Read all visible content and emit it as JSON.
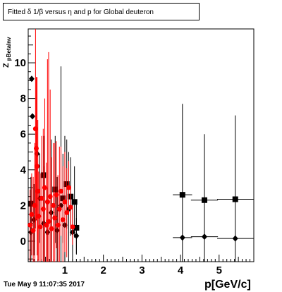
{
  "title": "Fitted δ 1/β versus η and p for Global deuteron",
  "ylabel_main": "Z",
  "ylabel_sub": "pBetaInv",
  "xlabel": "p[GeV/c]",
  "timestamp": "Tue May  9 11:07:35 2017",
  "chart_data": {
    "type": "scatter",
    "title": "Fitted δ 1/β versus η and p for Global deuteron",
    "xlabel": "p[GeV/c]",
    "ylabel": "Z pBetaInv",
    "xlim": [
      0.05,
      5.9
    ],
    "ylim": [
      -1.15,
      11.9
    ],
    "xticks": [
      1,
      2,
      3,
      4,
      5
    ],
    "yticks": [
      0,
      2,
      4,
      6,
      8,
      10
    ],
    "grid": false,
    "colors": {
      "red": "#ff0000",
      "black": "#000000"
    },
    "series": [
      {
        "marker": "square",
        "color": "#000000",
        "points": [
          {
            "x": 0.12,
            "y": 2.1,
            "ey": 1.5,
            "ex": 0.05
          },
          {
            "x": 0.45,
            "y": 3.7,
            "ey": 2.2,
            "ex": 0.05
          },
          {
            "x": 0.75,
            "y": 2.9,
            "ey": 3.0,
            "ex": 0.05
          },
          {
            "x": 0.95,
            "y": 2.4,
            "ey": 2.5,
            "ex": 0.05
          },
          {
            "x": 1.05,
            "y": 3.2,
            "ey": 2.5,
            "ex": 0.05
          },
          {
            "x": 1.15,
            "y": 2.5,
            "ey": 2.2,
            "ex": 0.05
          },
          {
            "x": 1.25,
            "y": 2.2,
            "ey": 2.0,
            "ex": 0.05
          },
          {
            "x": 1.3,
            "y": 0.75,
            "ey": 1.5,
            "ex": 0.05
          },
          {
            "x": 4.05,
            "y": 2.6,
            "ey": 5.1,
            "ex": 0.25
          },
          {
            "x": 4.62,
            "y": 2.3,
            "ey": 3.7,
            "ex": 0.35
          },
          {
            "x": 5.42,
            "y": 2.35,
            "ey": 4.7,
            "ex": 0.47
          }
        ]
      },
      {
        "marker": "diamond",
        "color": "#000000",
        "points": [
          {
            "x": 0.12,
            "y": 0.5,
            "ey": 1.8,
            "ex": 0.05
          },
          {
            "x": 0.14,
            "y": 9.1,
            "ey": 0.0,
            "ex": 0.0
          },
          {
            "x": 0.16,
            "y": 7.0,
            "ey": 0.0,
            "ex": 0.0
          },
          {
            "x": 0.2,
            "y": 1.2,
            "ey": 2.0,
            "ex": 0.05
          },
          {
            "x": 0.28,
            "y": 4.9,
            "ey": 0.0,
            "ex": 0.0
          },
          {
            "x": 0.35,
            "y": 2.4,
            "ey": 2.5,
            "ex": 0.05
          },
          {
            "x": 0.45,
            "y": 1.0,
            "ey": 3.2,
            "ex": 0.05
          },
          {
            "x": 0.55,
            "y": 0.5,
            "ey": 2.5,
            "ex": 0.05
          },
          {
            "x": 0.65,
            "y": 1.6,
            "ey": 4.1,
            "ex": 0.05
          },
          {
            "x": 0.8,
            "y": 0.6,
            "ey": 3.0,
            "ex": 0.05
          },
          {
            "x": 0.9,
            "y": 2.0,
            "ey": 7.8,
            "ex": 0.05
          },
          {
            "x": 1.0,
            "y": 0.9,
            "ey": 5.0,
            "ex": 0.05
          },
          {
            "x": 1.1,
            "y": 1.8,
            "ey": 3.2,
            "ex": 0.05
          },
          {
            "x": 1.2,
            "y": 0.5,
            "ey": 2.0,
            "ex": 0.05
          },
          {
            "x": 1.3,
            "y": 0.3,
            "ey": 1.0,
            "ex": 0.05
          },
          {
            "x": 4.05,
            "y": 0.2,
            "ey": 0.0,
            "ex": 0.25
          },
          {
            "x": 4.62,
            "y": 0.25,
            "ey": 0.0,
            "ex": 0.35
          },
          {
            "x": 5.42,
            "y": 0.15,
            "ey": 0.0,
            "ex": 0.47
          }
        ]
      },
      {
        "marker": "circle",
        "color": "#ff0000",
        "points": [
          {
            "x": 0.1,
            "y": 0.9,
            "ey": 2.0,
            "ex": 0.04
          },
          {
            "x": 0.14,
            "y": 1.5,
            "ey": 2.3,
            "ex": 0.04
          },
          {
            "x": 0.18,
            "y": 0.6,
            "ey": 3.0,
            "ex": 0.04
          },
          {
            "x": 0.22,
            "y": 2.0,
            "ey": 3.5,
            "ex": 0.04
          },
          {
            "x": 0.24,
            "y": 6.3,
            "ey": 5.6,
            "ex": 0.04
          },
          {
            "x": 0.26,
            "y": 5.2,
            "ey": 4.0,
            "ex": 0.04
          },
          {
            "x": 0.28,
            "y": 4.2,
            "ey": 5.0,
            "ex": 0.04
          },
          {
            "x": 0.3,
            "y": 2.8,
            "ey": 4.0,
            "ex": 0.04
          },
          {
            "x": 0.32,
            "y": 1.4,
            "ey": 2.5,
            "ex": 0.04
          },
          {
            "x": 0.36,
            "y": 0.8,
            "ey": 3.0,
            "ex": 0.04
          },
          {
            "x": 0.4,
            "y": 2.4,
            "ey": 3.5,
            "ex": 0.04
          },
          {
            "x": 0.44,
            "y": 1.8,
            "ey": 4.5,
            "ex": 0.04
          },
          {
            "x": 0.48,
            "y": 3.0,
            "ey": 5.0,
            "ex": 0.04
          },
          {
            "x": 0.52,
            "y": 0.9,
            "ey": 3.5,
            "ex": 0.04
          },
          {
            "x": 0.55,
            "y": 2.2,
            "ey": 8.0,
            "ex": 0.04
          },
          {
            "x": 0.58,
            "y": 1.1,
            "ey": 9.5,
            "ex": 0.04
          },
          {
            "x": 0.62,
            "y": 2.5,
            "ey": 6.0,
            "ex": 0.04
          },
          {
            "x": 0.66,
            "y": 0.7,
            "ey": 4.0,
            "ex": 0.04
          },
          {
            "x": 0.7,
            "y": 2.0,
            "ey": 3.5,
            "ex": 0.04
          },
          {
            "x": 0.74,
            "y": 1.3,
            "ey": 4.2,
            "ex": 0.04
          },
          {
            "x": 0.78,
            "y": 2.6,
            "ey": 3.0,
            "ex": 0.04
          },
          {
            "x": 0.82,
            "y": 0.9,
            "ey": 2.8,
            "ex": 0.04
          },
          {
            "x": 0.86,
            "y": 1.8,
            "ey": 3.5,
            "ex": 0.04
          },
          {
            "x": 0.9,
            "y": 2.8,
            "ey": 2.5,
            "ex": 0.04
          },
          {
            "x": 0.95,
            "y": 1.2,
            "ey": 3.0,
            "ex": 0.04
          },
          {
            "x": 1.0,
            "y": 2.2,
            "ey": 2.8,
            "ex": 0.04
          },
          {
            "x": 1.05,
            "y": 1.6,
            "ey": 2.5,
            "ex": 0.04
          },
          {
            "x": 1.1,
            "y": 3.0,
            "ey": 1.5,
            "ex": 0.04
          },
          {
            "x": 1.15,
            "y": 1.9,
            "ey": 1.2,
            "ex": 0.04
          },
          {
            "x": 1.2,
            "y": 0.8,
            "ey": 1.0,
            "ex": 0.04
          }
        ]
      }
    ]
  }
}
